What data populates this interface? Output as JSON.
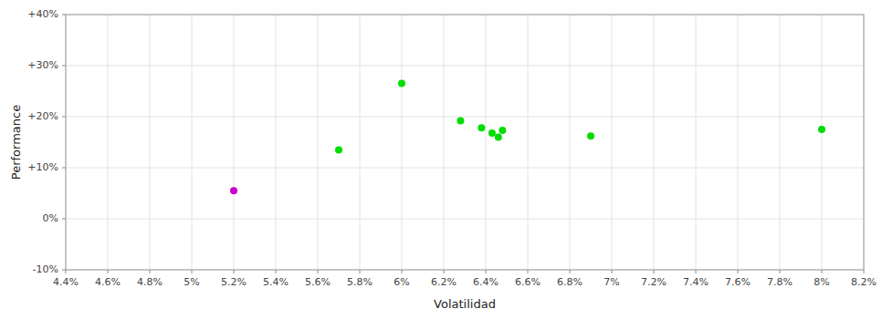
{
  "chart_data": {
    "type": "scatter",
    "x_label": "Volatilidad",
    "y_label": "Performance",
    "xlim": [
      0.044,
      0.082
    ],
    "ylim": [
      -0.1,
      0.4
    ],
    "xticks": [
      {
        "value": 0.044,
        "label": "4.4%"
      },
      {
        "value": 0.046,
        "label": "4.6%"
      },
      {
        "value": 0.048,
        "label": "4.8%"
      },
      {
        "value": 0.05,
        "label": "5%"
      },
      {
        "value": 0.052,
        "label": "5.2%"
      },
      {
        "value": 0.054,
        "label": "5.4%"
      },
      {
        "value": 0.056,
        "label": "5.6%"
      },
      {
        "value": 0.058,
        "label": "5.8%"
      },
      {
        "value": 0.06,
        "label": "6%"
      },
      {
        "value": 0.062,
        "label": "6.2%"
      },
      {
        "value": 0.064,
        "label": "6.4%"
      },
      {
        "value": 0.066,
        "label": "6.6%"
      },
      {
        "value": 0.068,
        "label": "6.8%"
      },
      {
        "value": 0.07,
        "label": "7%"
      },
      {
        "value": 0.072,
        "label": "7.2%"
      },
      {
        "value": 0.074,
        "label": "7.4%"
      },
      {
        "value": 0.076,
        "label": "7.6%"
      },
      {
        "value": 0.078,
        "label": "7.8%"
      },
      {
        "value": 0.08,
        "label": "8%"
      },
      {
        "value": 0.082,
        "label": "8.2%"
      }
    ],
    "yticks": [
      {
        "value": -0.1,
        "label": "-10%"
      },
      {
        "value": 0.0,
        "label": "0%"
      },
      {
        "value": 0.1,
        "label": "+10%"
      },
      {
        "value": 0.2,
        "label": "+20%"
      },
      {
        "value": 0.3,
        "label": "+30%"
      },
      {
        "value": 0.4,
        "label": "+40%"
      }
    ],
    "grid": true,
    "series": [
      {
        "color": "#00dd00",
        "marker": "circle",
        "x": [
          0.06,
          0.057,
          0.0628,
          0.0638,
          0.0643,
          0.0646,
          0.0648,
          0.069,
          0.08
        ],
        "values": [
          0.265,
          0.135,
          0.192,
          0.178,
          0.168,
          0.16,
          0.173,
          0.162,
          0.175
        ]
      },
      {
        "color": "#cc00cc",
        "marker": "circle",
        "x": [
          0.052
        ],
        "values": [
          0.055
        ]
      }
    ]
  }
}
